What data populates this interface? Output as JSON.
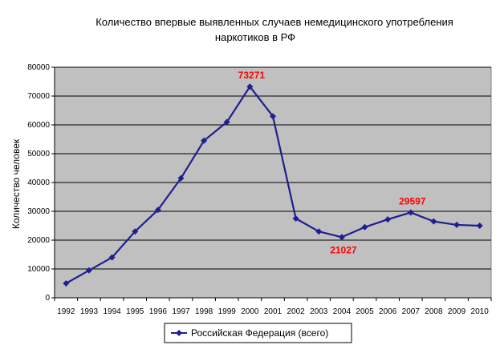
{
  "chart_data": {
    "type": "line",
    "title": [
      "Количество впервые выявленных случаев немедицинского употребления",
      "наркотиков в РФ"
    ],
    "ylabel": "Количество человек",
    "xlabel": "",
    "categories": [
      "1992",
      "1993",
      "1994",
      "1995",
      "1996",
      "1997",
      "1998",
      "1999",
      "2000",
      "2001",
      "2002",
      "2003",
      "2004",
      "2005",
      "2006",
      "2007",
      "2008",
      "2009",
      "2010"
    ],
    "series": [
      {
        "name": "Российская Федерация (всего)",
        "color": "#1f1f8f",
        "values": [
          5000,
          9500,
          14000,
          23000,
          30500,
          41500,
          54500,
          61000,
          73271,
          63000,
          27500,
          23000,
          21027,
          24500,
          27200,
          29597,
          26500,
          25300,
          25000
        ]
      }
    ],
    "ylim": [
      0,
      80000
    ],
    "yticks": [
      0,
      10000,
      20000,
      30000,
      40000,
      50000,
      60000,
      70000,
      80000
    ],
    "ytick_labels": [
      "0",
      "10000",
      "20000",
      "30000",
      "40000",
      "50000",
      "60000",
      "70000",
      "80000"
    ],
    "data_labels": [
      {
        "category": "2000",
        "text": "73271",
        "position": "above"
      },
      {
        "category": "2004",
        "text": "21027",
        "position": "below"
      },
      {
        "category": "2007",
        "text": "29597",
        "position": "above"
      }
    ],
    "grid": true,
    "plot_background": "#c0c0c0",
    "label_color": "#ff0000",
    "legend_position": "bottom"
  }
}
